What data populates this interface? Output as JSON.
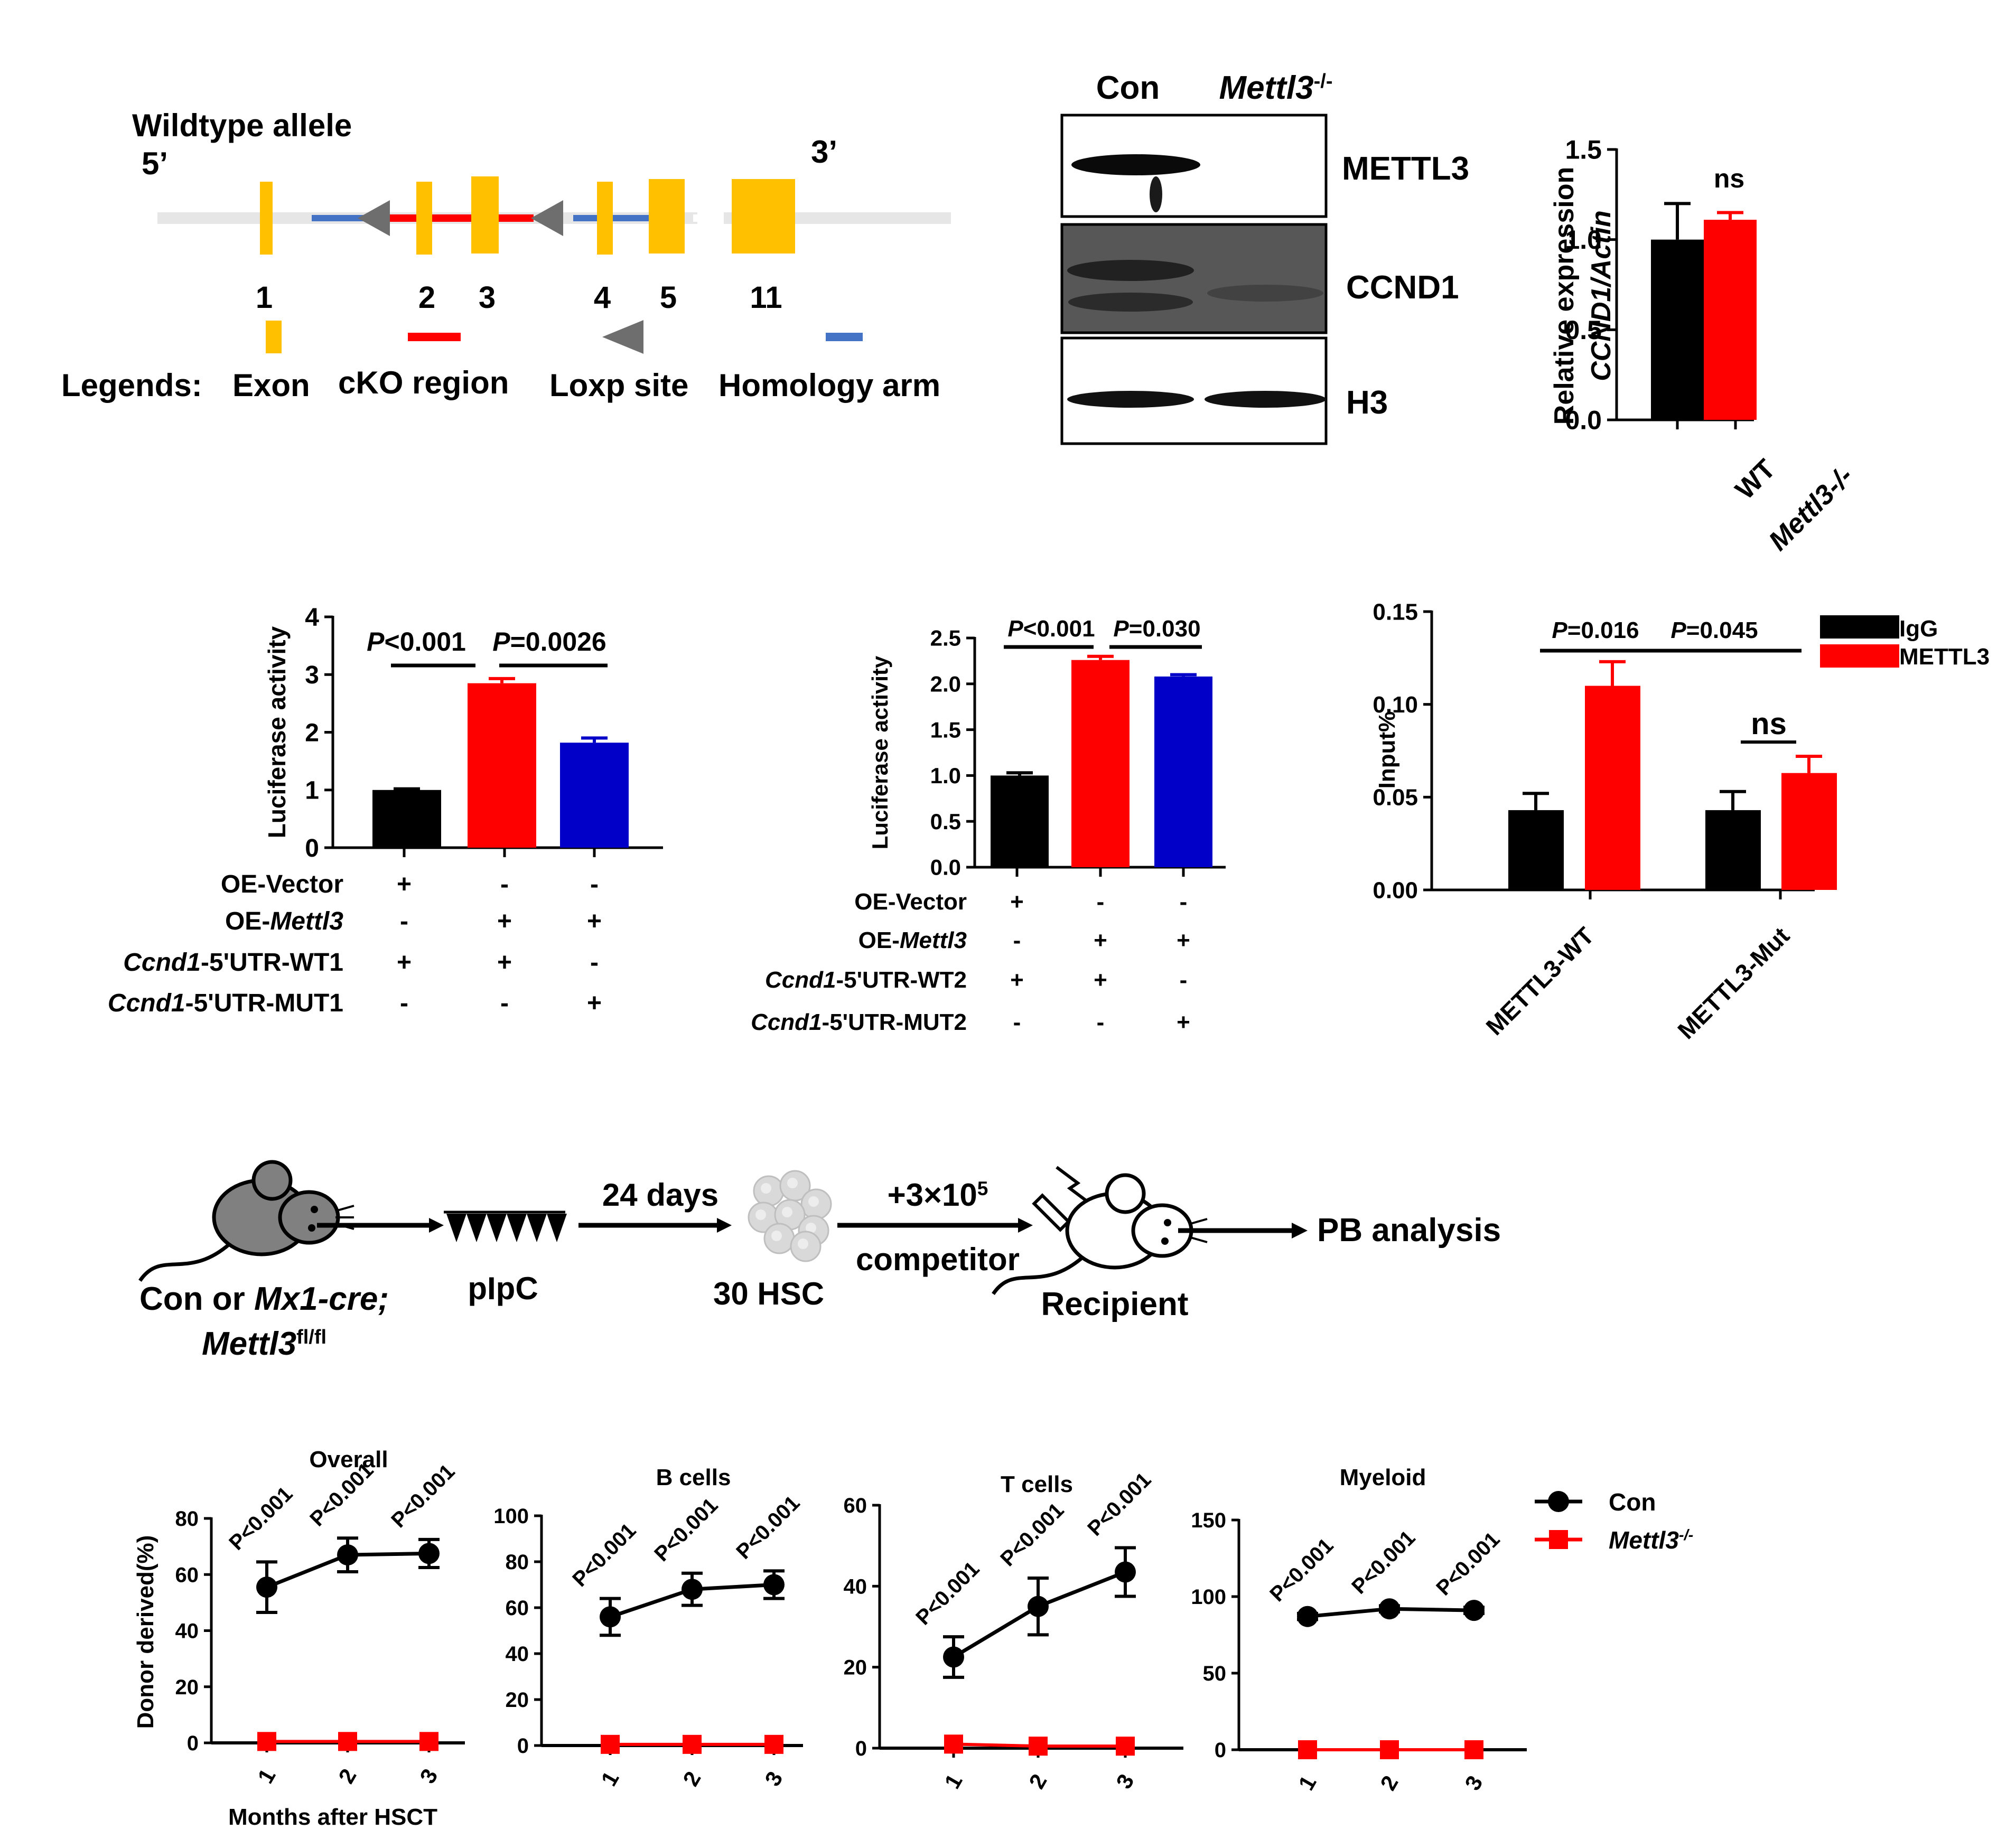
{
  "colors": {
    "black": "#000000",
    "red": "#ff0000",
    "blue": "#0000c8",
    "yellow": "#ffc000",
    "grey": "#6e6e6e",
    "homology": "#4472c4",
    "line": "#e6e6e6"
  },
  "allele": {
    "title": "Wildtype allele",
    "five_prime": "5’",
    "three_prime": "3’",
    "exon_numbers": [
      "1",
      "2",
      "3",
      "4",
      "5",
      "11"
    ],
    "legends_label": "Legends:",
    "legend_items": [
      "Exon",
      "cKO region",
      "Loxp site",
      "Homology arm"
    ]
  },
  "western": {
    "lanes": {
      "con": "Con",
      "ko_prefix": "Mettl3",
      "ko_sup": "-/-"
    },
    "bands": [
      "METTL3",
      "CCND1",
      "H3"
    ]
  },
  "experiment": {
    "start_a": "Con or ",
    "start_b": "Mx1-cre;",
    "start_c": "Mettl3",
    "start_c_sup": "fl/fl",
    "treatment": "pIpC",
    "wait": "24 days",
    "cells": "30 HSC",
    "dose": "+3×10",
    "dose_sup": "5",
    "competitor": "competitor",
    "recipient": "Recipient",
    "readout": "PB analysis"
  },
  "chart_data": [
    {
      "id": "qpcr",
      "type": "bar",
      "categories": [
        "WT",
        "Mettl3-/-"
      ],
      "values": [
        1.0,
        1.11
      ],
      "errors": [
        0.2,
        0.04
      ],
      "ylabel_1": "Relative expression",
      "ylabel_2": "CCND1/Actin",
      "ylim": [
        0,
        1.5
      ],
      "yticks": [
        "0.0",
        "0.5",
        "1.0",
        "1.5"
      ],
      "annotation": "ns"
    },
    {
      "id": "luc1",
      "type": "bar",
      "values": [
        1.0,
        2.85,
        1.82
      ],
      "errors": [
        0.02,
        0.08,
        0.08
      ],
      "ylabel": "Luciferase activity",
      "ylim": [
        0,
        4
      ],
      "yticks": [
        "0",
        "1",
        "2",
        "3",
        "4"
      ],
      "p_values": [
        "P<0.001",
        "P=0.0026"
      ],
      "conditions": [
        {
          "label": "OE-Vector",
          "signs": [
            "+",
            "-",
            "-"
          ]
        },
        {
          "label_pre": "OE-",
          "label_it": "Mettl3",
          "signs": [
            "-",
            "+",
            "+"
          ]
        },
        {
          "label_it": "Ccnd1",
          "label_post": "-5'UTR-WT1",
          "signs": [
            "+",
            "+",
            "-"
          ]
        },
        {
          "label_it": "Ccnd1",
          "label_post": "-5'UTR-MUT1",
          "signs": [
            "-",
            "-",
            "+"
          ]
        }
      ]
    },
    {
      "id": "luc2",
      "type": "bar",
      "values": [
        1.0,
        2.26,
        2.08
      ],
      "errors": [
        0.03,
        0.04,
        0.02
      ],
      "ylabel": "Luciferase activity",
      "ylim": [
        0,
        2.5
      ],
      "yticks": [
        "0.0",
        "0.5",
        "1.0",
        "1.5",
        "2.0",
        "2.5"
      ],
      "p_values": [
        "P<0.001",
        "P=0.030"
      ],
      "conditions": [
        {
          "label": "OE-Vector",
          "signs": [
            "+",
            "-",
            "-"
          ]
        },
        {
          "label_pre": "OE-",
          "label_it": "Mettl3",
          "signs": [
            "-",
            "+",
            "+"
          ]
        },
        {
          "label_it": "Ccnd1",
          "label_post": "-5'UTR-WT2",
          "signs": [
            "+",
            "+",
            "-"
          ]
        },
        {
          "label_it": "Ccnd1",
          "label_post": "-5'UTR-MUT2",
          "signs": [
            "-",
            "-",
            "+"
          ]
        }
      ]
    },
    {
      "id": "rip",
      "type": "bar",
      "categories": [
        "METTL3-WT",
        "METTL3-Mut"
      ],
      "series": [
        {
          "name": "IgG",
          "values": [
            0.043,
            0.043
          ],
          "errors": [
            0.009,
            0.01
          ]
        },
        {
          "name": "METTL3",
          "values": [
            0.11,
            0.063
          ],
          "errors": [
            0.013,
            0.009
          ]
        }
      ],
      "ylabel": "Input%",
      "ylim": [
        0,
        0.15
      ],
      "yticks": [
        "0.00",
        "0.05",
        "0.10",
        "0.15"
      ],
      "p_values": [
        "P=0.016",
        "P=0.045"
      ],
      "annotation": "ns"
    },
    {
      "id": "overall",
      "type": "line",
      "title": "Overall",
      "x": [
        1,
        2,
        3
      ],
      "xticks": [
        "1",
        "2",
        "3"
      ],
      "series": [
        {
          "name": "Con",
          "values": [
            55.5,
            67,
            67.5
          ],
          "errors": [
            9,
            6,
            5
          ]
        },
        {
          "name": "Mettl3-/-",
          "values": [
            0.5,
            0.5,
            0.5
          ],
          "errors": [
            0,
            0,
            0
          ]
        }
      ],
      "ylim": [
        0,
        80
      ],
      "yticks": [
        "0",
        "20",
        "40",
        "60",
        "80"
      ],
      "ylabel": "Donor derived(%)",
      "xlabel": "Months after HSCT",
      "p_labels": [
        "P<0.001",
        "P<0.001",
        "P<0.001"
      ]
    },
    {
      "id": "bcells",
      "type": "line",
      "title": "B cells",
      "x": [
        1,
        2,
        3
      ],
      "xticks": [
        "1",
        "2",
        "3"
      ],
      "series": [
        {
          "name": "Con",
          "values": [
            56,
            68,
            70
          ],
          "errors": [
            8,
            7,
            6
          ]
        },
        {
          "name": "Mettl3-/-",
          "values": [
            0.5,
            0.5,
            0.5
          ],
          "errors": [
            0,
            0,
            0
          ]
        }
      ],
      "ylim": [
        0,
        100
      ],
      "yticks": [
        "0",
        "20",
        "40",
        "60",
        "80",
        "100"
      ],
      "p_labels": [
        "P<0.001",
        "P<0.001",
        "P<0.001"
      ]
    },
    {
      "id": "tcells",
      "type": "line",
      "title": "T cells",
      "x": [
        1,
        2,
        3
      ],
      "xticks": [
        "1",
        "2",
        "3"
      ],
      "series": [
        {
          "name": "Con",
          "values": [
            22.5,
            35,
            43.5
          ],
          "errors": [
            5,
            7,
            6
          ]
        },
        {
          "name": "Mettl3-/-",
          "values": [
            1,
            0.5,
            0.5
          ],
          "errors": [
            0,
            0,
            0
          ]
        }
      ],
      "ylim": [
        0,
        60
      ],
      "yticks": [
        "0",
        "20",
        "40",
        "60"
      ],
      "p_labels": [
        "P<0.001",
        "P<0.001",
        "P<0.001"
      ]
    },
    {
      "id": "myeloid",
      "type": "line",
      "title": "Myeloid",
      "x": [
        1,
        2,
        3
      ],
      "xticks": [
        "1",
        "2",
        "3"
      ],
      "series": [
        {
          "name": "Con",
          "values": [
            87,
            92,
            91
          ],
          "errors": [
            2,
            2,
            2
          ]
        },
        {
          "name": "Mettl3-/-",
          "values": [
            0,
            0,
            0
          ],
          "errors": [
            0,
            0,
            0
          ]
        }
      ],
      "ylim": [
        0,
        150
      ],
      "yticks": [
        "0",
        "50",
        "100",
        "150"
      ],
      "p_labels": [
        "P<0.001",
        "P<0.001",
        "P<0.001"
      ]
    }
  ],
  "line_legend": [
    {
      "label": "Con"
    },
    {
      "label": "Mettl3",
      "sup": "-/-"
    }
  ]
}
